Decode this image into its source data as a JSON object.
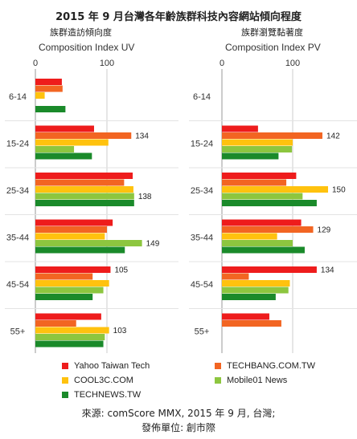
{
  "title": "2015 年 9 月台灣各年齡族群科技內容網站傾向程度",
  "left_subtitle": "族群造訪傾向度",
  "right_subtitle": "族群瀏覽黏著度",
  "footer": {
    "line1": "來源: comScore MMX, 2015 年 9 月, 台灣;",
    "line2": "發佈單位: 創市際"
  },
  "colors": {
    "Yahoo Taiwan Tech": "#ee1c1c",
    "TECHBANG.COM.TW": "#f26522",
    "COOL3C.COM": "#ffc20e",
    "Mobile01 News": "#8dc63f",
    "TECHNEWS.TW": "#1a8a2a"
  },
  "legend": [
    {
      "name": "Yahoo Taiwan Tech",
      "color_key": "Yahoo Taiwan Tech"
    },
    {
      "name": "TECHBANG.COM.TW",
      "color_key": "TECHBANG.COM.TW"
    },
    {
      "name": "COOL3C.COM",
      "color_key": "COOL3C.COM"
    },
    {
      "name": "Mobile01 News",
      "color_key": "Mobile01 News"
    },
    {
      "name": "TECHNEWS.TW",
      "color_key": "TECHNEWS.TW"
    }
  ],
  "chart_data": [
    {
      "type": "bar",
      "orientation": "horizontal",
      "xlabel": "Composition Index UV",
      "xlim": [
        0,
        150
      ],
      "xticks": [
        0,
        100
      ],
      "gridlines": [
        100
      ],
      "categories": [
        "6-14",
        "15-24",
        "25-34",
        "35-44",
        "45-54",
        "55+"
      ],
      "series": [
        {
          "name": "Yahoo Taiwan Tech",
          "values": [
            37,
            82,
            136,
            108,
            105,
            92
          ]
        },
        {
          "name": "TECHBANG.COM.TW",
          "values": [
            38,
            134,
            124,
            100,
            80,
            57
          ]
        },
        {
          "name": "COOL3C.COM",
          "values": [
            13,
            102,
            137,
            97,
            103,
            103
          ]
        },
        {
          "name": "Mobile01 News",
          "values": [
            0,
            54,
            138,
            149,
            95,
            97
          ]
        },
        {
          "name": "TECHNEWS.TW",
          "values": [
            42,
            79,
            138,
            125,
            80,
            95
          ]
        }
      ],
      "data_labels": [
        {
          "category": "15-24",
          "value": 134,
          "text": "134"
        },
        {
          "category": "25-34",
          "value": 138,
          "text": "138"
        },
        {
          "category": "35-44",
          "value": 149,
          "text": "149"
        },
        {
          "category": "45-54",
          "value": 105,
          "text": "105"
        },
        {
          "category": "55+",
          "value": 103,
          "text": "103"
        }
      ]
    },
    {
      "type": "bar",
      "orientation": "horizontal",
      "xlabel": "Composition Index PV",
      "xlim": [
        0,
        150
      ],
      "xticks": [
        0,
        100
      ],
      "gridlines": [
        100
      ],
      "categories": [
        "6-14",
        "15-24",
        "25-34",
        "35-44",
        "45-54",
        "55+"
      ],
      "series": [
        {
          "name": "Yahoo Taiwan Tech",
          "values": [
            0,
            51,
            105,
            112,
            134,
            67
          ]
        },
        {
          "name": "TECHBANG.COM.TW",
          "values": [
            0,
            142,
            91,
            129,
            38,
            84
          ]
        },
        {
          "name": "COOL3C.COM",
          "values": [
            0,
            100,
            150,
            78,
            96,
            0
          ]
        },
        {
          "name": "Mobile01 News",
          "values": [
            0,
            99,
            114,
            100,
            94,
            0
          ]
        },
        {
          "name": "TECHNEWS.TW",
          "values": [
            0,
            80,
            134,
            117,
            76,
            0
          ]
        }
      ],
      "data_labels": [
        {
          "category": "15-24",
          "value": 142,
          "text": "142"
        },
        {
          "category": "25-34",
          "value": 150,
          "text": "150"
        },
        {
          "category": "35-44",
          "value": 129,
          "text": "129"
        },
        {
          "category": "45-54",
          "value": 134,
          "text": "134"
        }
      ]
    }
  ]
}
